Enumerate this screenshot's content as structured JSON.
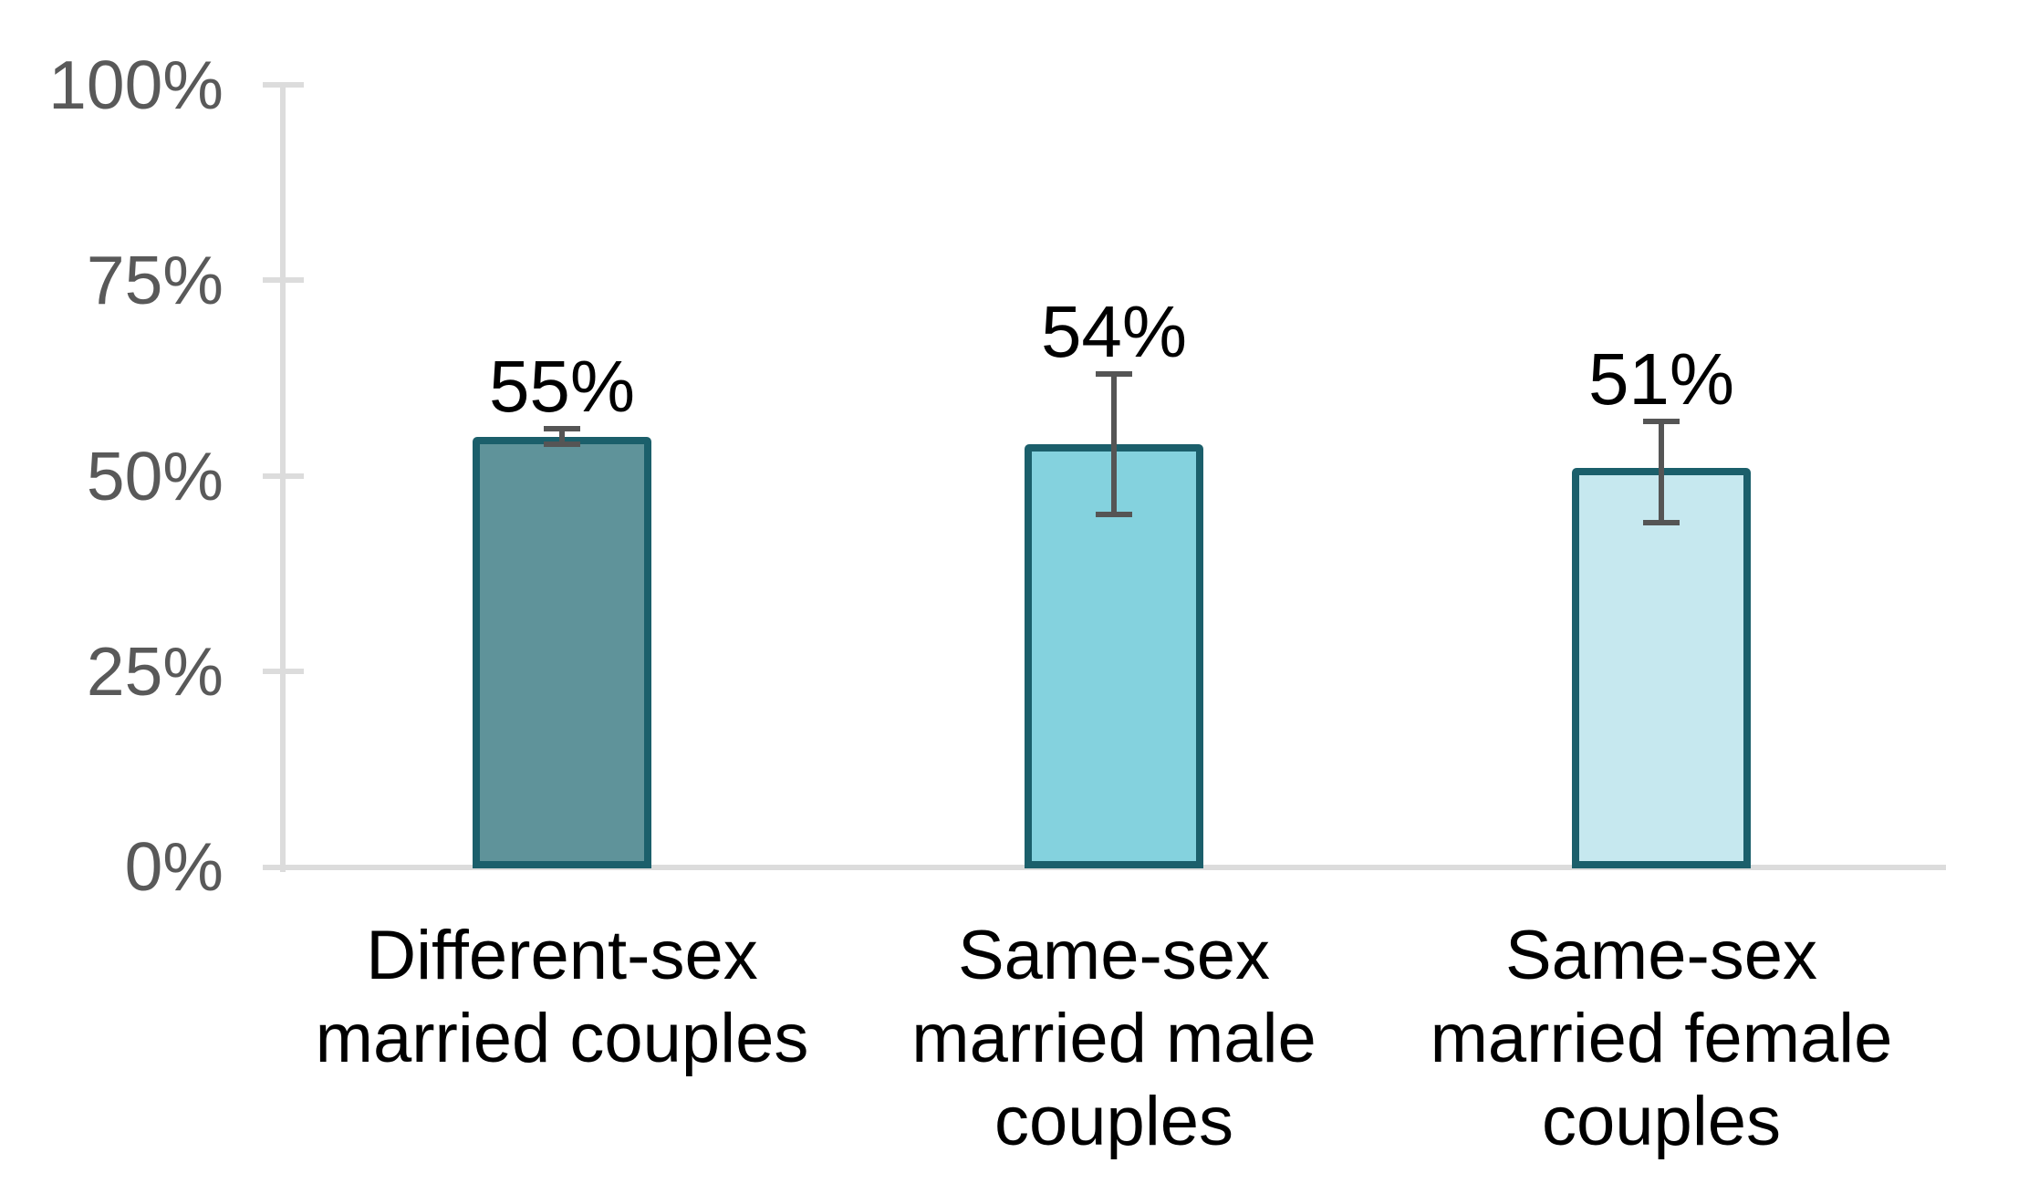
{
  "chart_data": {
    "type": "bar",
    "title": "",
    "xlabel": "",
    "ylabel": "",
    "categories": [
      "Different-sex married couples",
      "Same-sex married male couples",
      "Same-sex married female couples"
    ],
    "category_lines": [
      [
        "Different-sex",
        "married couples"
      ],
      [
        "Same-sex",
        "married male",
        "couples"
      ],
      [
        "Same-sex",
        "married female",
        "couples"
      ]
    ],
    "values": [
      55,
      54,
      51
    ],
    "value_labels": [
      "55%",
      "54%",
      "51%"
    ],
    "error_bars": {
      "low": [
        54,
        45,
        44
      ],
      "high": [
        56,
        63,
        57
      ]
    },
    "yticks": [
      "0%",
      "25%",
      "50%",
      "75%",
      "100%"
    ],
    "ytick_values": [
      0,
      25,
      50,
      75,
      100
    ],
    "ylim": [
      0,
      100
    ],
    "grid": false,
    "legend": false,
    "colors": {
      "bar_fills": [
        "#5F939A",
        "#84D2DE",
        "#C6E8EF"
      ],
      "bar_border": "#1B5F6B",
      "error_bar": "#555555",
      "axis": "#DCDCDC",
      "ytick_label": "#595959",
      "value_label": "#000000",
      "category_label": "#000000",
      "background": "#FFFFFF"
    }
  }
}
